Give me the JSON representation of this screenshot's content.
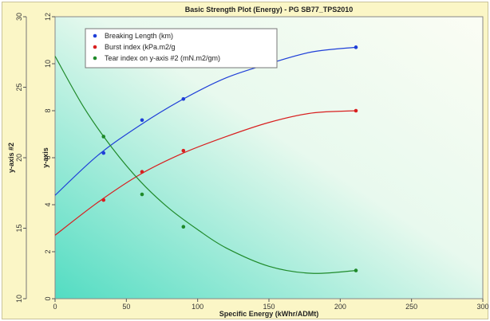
{
  "chart_data": {
    "type": "line",
    "title": "Basic Strength Plot (Energy) - PG SB77_TPS2010",
    "xlabel": "Specific Energy (kWhr/ADMt)",
    "ylabel": "y-axis",
    "y2label": "y-axis #2",
    "xlim": [
      0,
      300
    ],
    "ylim": [
      0,
      12
    ],
    "y2lim": [
      10,
      30
    ],
    "x_ticks": [
      0,
      50,
      100,
      150,
      200,
      250,
      300
    ],
    "y_ticks": [
      0,
      2,
      4,
      6,
      8,
      10,
      12
    ],
    "y2_ticks": [
      10,
      15,
      20,
      25,
      30
    ],
    "grid": false,
    "legend_position": "top-left",
    "series": [
      {
        "name": "Breaking Length (km)",
        "axis": "y",
        "color": "#1f3fd8",
        "x": [
          34,
          61,
          90,
          211
        ],
        "y": [
          6.2,
          7.6,
          8.5,
          10.7
        ],
        "fit": [
          [
            0,
            4.4
          ],
          [
            30,
            6.1
          ],
          [
            60,
            7.4
          ],
          [
            90,
            8.5
          ],
          [
            120,
            9.4
          ],
          [
            150,
            10.0
          ],
          [
            180,
            10.5
          ],
          [
            211,
            10.7
          ]
        ]
      },
      {
        "name": "Burst index (kPa.m2/g",
        "axis": "y",
        "color": "#d81f1f",
        "x": [
          34,
          61,
          90,
          211
        ],
        "y": [
          4.2,
          5.4,
          6.3,
          8.0
        ],
        "fit": [
          [
            0,
            2.7
          ],
          [
            30,
            4.1
          ],
          [
            60,
            5.3
          ],
          [
            90,
            6.2
          ],
          [
            120,
            6.9
          ],
          [
            150,
            7.5
          ],
          [
            180,
            7.9
          ],
          [
            211,
            8.0
          ]
        ]
      },
      {
        "name": "Tear index on y-axis #2 (mN.m2/gm)",
        "axis": "y2",
        "color": "#1f8a2a",
        "x": [
          34,
          61,
          90,
          211
        ],
        "y": [
          21.5,
          17.4,
          15.1,
          12.0
        ],
        "fit": [
          [
            0,
            27.2
          ],
          [
            20,
            23.6
          ],
          [
            40,
            20.7
          ],
          [
            60,
            18.3
          ],
          [
            80,
            16.4
          ],
          [
            100,
            14.9
          ],
          [
            120,
            13.6
          ],
          [
            150,
            12.3
          ],
          [
            180,
            11.8
          ],
          [
            211,
            12.0
          ]
        ]
      }
    ]
  }
}
